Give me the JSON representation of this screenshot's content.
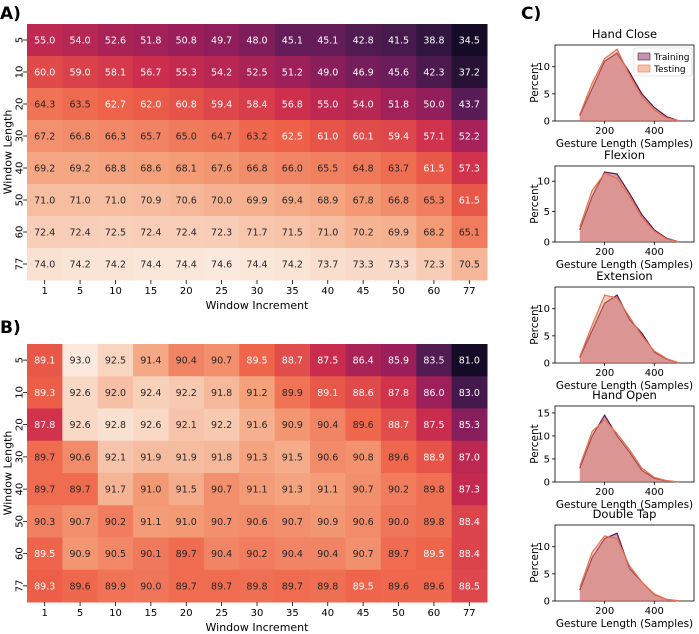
{
  "panel_labels": [
    "A)",
    "B)",
    "C)"
  ],
  "chart_data": [
    {
      "type": "heatmap",
      "panel": "A)",
      "xlabel": "Window Increment",
      "ylabel": "Window Length",
      "x_ticks": [
        "1",
        "5",
        "10",
        "15",
        "20",
        "25",
        "30",
        "35",
        "40",
        "45",
        "50",
        "60",
        "77"
      ],
      "y_ticks": [
        "5",
        "10",
        "20",
        "30",
        "40",
        "50",
        "60",
        "77"
      ],
      "vmin": 34.5,
      "vmax": 74.6,
      "values": [
        [
          "55.0",
          "54.0",
          "52.6",
          "51.8",
          "50.8",
          "49.7",
          "48.0",
          "45.1",
          "45.1",
          "42.8",
          "41.5",
          "38.8",
          "34.5"
        ],
        [
          "60.0",
          "59.0",
          "58.1",
          "56.7",
          "55.3",
          "54.2",
          "52.5",
          "51.2",
          "49.0",
          "46.9",
          "45.6",
          "42.3",
          "37.2"
        ],
        [
          "64.3",
          "63.5",
          "62.7",
          "62.0",
          "60.8",
          "59.4",
          "58.4",
          "56.8",
          "55.0",
          "54.0",
          "51.8",
          "50.0",
          "43.7"
        ],
        [
          "67.2",
          "66.8",
          "66.3",
          "65.7",
          "65.0",
          "64.7",
          "63.2",
          "62.5",
          "61.0",
          "60.1",
          "59.4",
          "57.1",
          "52.2"
        ],
        [
          "69.2",
          "69.2",
          "68.8",
          "68.6",
          "68.1",
          "67.6",
          "66.8",
          "66.0",
          "65.5",
          "64.8",
          "63.7",
          "61.5",
          "57.3"
        ],
        [
          "71.0",
          "71.0",
          "71.0",
          "70.9",
          "70.6",
          "70.0",
          "69.9",
          "69.4",
          "68.9",
          "67.8",
          "66.8",
          "65.3",
          "61.5"
        ],
        [
          "72.4",
          "72.4",
          "72.5",
          "72.4",
          "72.4",
          "72.3",
          "71.7",
          "71.5",
          "71.0",
          "70.2",
          "69.9",
          "68.2",
          "65.1"
        ],
        [
          "74.0",
          "74.2",
          "74.2",
          "74.4",
          "74.4",
          "74.6",
          "74.4",
          "74.2",
          "73.7",
          "73.3",
          "73.3",
          "72.3",
          "70.5"
        ]
      ]
    },
    {
      "type": "heatmap",
      "panel": "B)",
      "xlabel": "Window Increment",
      "ylabel": "Window Length",
      "x_ticks": [
        "1",
        "5",
        "10",
        "15",
        "20",
        "25",
        "30",
        "35",
        "40",
        "45",
        "50",
        "60",
        "77"
      ],
      "y_ticks": [
        "5",
        "10",
        "20",
        "30",
        "40",
        "50",
        "60",
        "77"
      ],
      "vmin": 81.0,
      "vmax": 93.0,
      "values": [
        [
          "89.1",
          "93.0",
          "92.5",
          "91.4",
          "90.4",
          "90.7",
          "89.5",
          "88.7",
          "87.5",
          "86.4",
          "85.9",
          "83.5",
          "81.0"
        ],
        [
          "89.3",
          "92.6",
          "92.0",
          "92.4",
          "92.2",
          "91.8",
          "91.2",
          "89.9",
          "89.1",
          "88.6",
          "87.8",
          "86.0",
          "83.0"
        ],
        [
          "87.8",
          "92.6",
          "92.8",
          "92.6",
          "92.1",
          "92.2",
          "91.6",
          "90.9",
          "90.4",
          "89.6",
          "88.7",
          "87.5",
          "85.3"
        ],
        [
          "89.7",
          "90.6",
          "92.1",
          "91.9",
          "91.9",
          "91.8",
          "91.3",
          "91.5",
          "90.6",
          "90.8",
          "89.6",
          "88.9",
          "87.0"
        ],
        [
          "89.7",
          "89.7",
          "91.7",
          "91.0",
          "91.5",
          "90.7",
          "91.1",
          "91.3",
          "91.1",
          "90.7",
          "90.2",
          "89.8",
          "87.3"
        ],
        [
          "90.3",
          "90.7",
          "90.2",
          "91.1",
          "91.0",
          "90.7",
          "90.6",
          "90.7",
          "90.9",
          "90.6",
          "90.0",
          "89.8",
          "88.4"
        ],
        [
          "89.5",
          "90.9",
          "90.5",
          "90.1",
          "89.7",
          "90.4",
          "90.2",
          "90.4",
          "90.4",
          "90.7",
          "89.7",
          "89.5",
          "88.4"
        ],
        [
          "89.3",
          "89.6",
          "89.9",
          "90.0",
          "89.7",
          "89.7",
          "89.8",
          "89.7",
          "89.8",
          "89.5",
          "89.6",
          "89.6",
          "88.5"
        ]
      ]
    },
    {
      "type": "area",
      "panel": "C)",
      "xlabel": "Gesture Length (Samples)",
      "ylabel": "Percent",
      "xlim": [
        0,
        560
      ],
      "x_ticks": [
        "200",
        "400"
      ],
      "legend": [
        "Training",
        "Testing"
      ],
      "legend_position": "top-right",
      "colors": {
        "training": "#9b4d7a",
        "testing": "#f28e6a"
      },
      "x": [
        100,
        150,
        200,
        250,
        300,
        350,
        400,
        450,
        500
      ],
      "subplots": [
        {
          "title": "Hand Close",
          "ylim": [
            0,
            14
          ],
          "y_ticks": [
            "0",
            "5",
            "10"
          ],
          "series": [
            {
              "name": "Training",
              "values": [
                1,
                6,
                11,
                12.5,
                9,
                5,
                2.5,
                0.8,
                0
              ]
            },
            {
              "name": "Testing",
              "values": [
                1.2,
                7,
                11.5,
                13.2,
                8.5,
                4.5,
                2,
                0.6,
                0
              ]
            }
          ]
        },
        {
          "title": "Flexion",
          "ylim": [
            0,
            12.5
          ],
          "y_ticks": [
            "0",
            "5",
            "10"
          ],
          "series": [
            {
              "name": "Training",
              "values": [
                2,
                7.5,
                11.5,
                11.2,
                8,
                4.5,
                2,
                0.6,
                0
              ]
            },
            {
              "name": "Testing",
              "values": [
                2.5,
                8.5,
                11.3,
                10.5,
                7.5,
                4,
                1.8,
                0.5,
                0
              ]
            }
          ]
        },
        {
          "title": "Extension",
          "ylim": [
            0,
            14
          ],
          "y_ticks": [
            "0",
            "5",
            "10"
          ],
          "series": [
            {
              "name": "Training",
              "values": [
                1,
                6,
                11,
                12.5,
                8,
                5.5,
                2,
                0.7,
                0
              ]
            },
            {
              "name": "Testing",
              "values": [
                1.2,
                7,
                12.5,
                12,
                8.5,
                5,
                2.2,
                0.8,
                0
              ]
            }
          ]
        },
        {
          "title": "Hand Open",
          "ylim": [
            0,
            16.5
          ],
          "y_ticks": [
            "0",
            "5",
            "10",
            "15"
          ],
          "series": [
            {
              "name": "Training",
              "values": [
                3,
                10,
                14.5,
                10,
                6.5,
                2.5,
                0.8,
                0.2,
                0
              ]
            },
            {
              "name": "Testing",
              "values": [
                3.5,
                11,
                13.5,
                10.5,
                7,
                3,
                1,
                0.3,
                0
              ]
            }
          ]
        },
        {
          "title": "Double Tap",
          "ylim": [
            0,
            14
          ],
          "y_ticks": [
            "0",
            "5",
            "10"
          ],
          "series": [
            {
              "name": "Training",
              "values": [
                2,
                8,
                11.5,
                12.5,
                6,
                3.5,
                1.2,
                0.3,
                0
              ]
            },
            {
              "name": "Testing",
              "values": [
                2.5,
                9,
                12,
                11.5,
                6.5,
                3.5,
                1.3,
                0.3,
                0
              ]
            }
          ]
        }
      ]
    }
  ]
}
